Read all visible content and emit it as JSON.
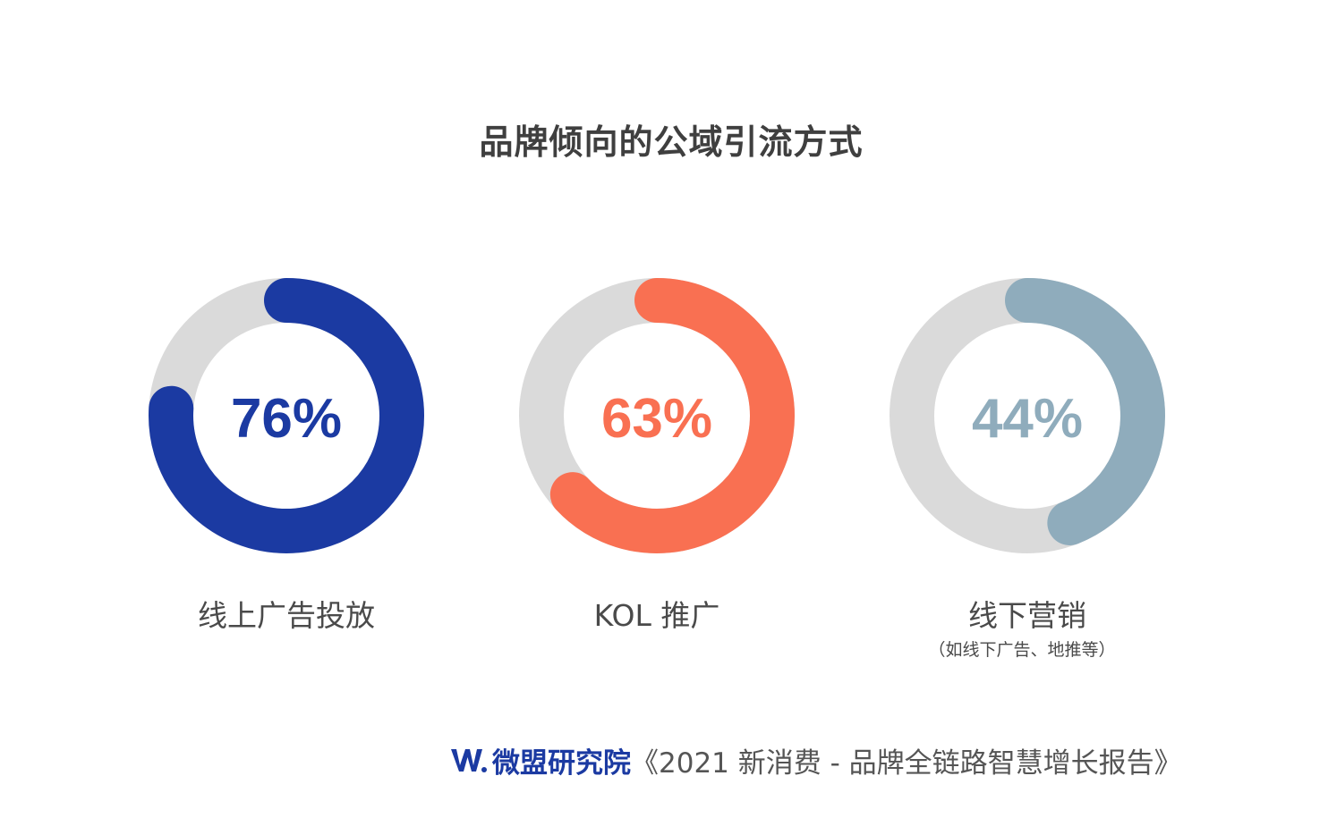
{
  "title": "品牌倾向的公域引流方式",
  "chart_data": {
    "type": "pie",
    "subtype": "donut",
    "series": [
      {
        "name": "线上广告投放",
        "note": "",
        "value": 76,
        "label": "76%",
        "color": "#1b3aa2"
      },
      {
        "name": "KOL 推广",
        "note": "",
        "value": 63,
        "label": "63%",
        "color": "#f97052"
      },
      {
        "name": "线下营销",
        "note": "（如线下广告、地推等）",
        "value": 44,
        "label": "44%",
        "color": "#8facbc"
      }
    ],
    "track_color": "#dadada"
  },
  "footer": {
    "brand": "微盟研究院",
    "report": "《2021 新消费 - 品牌全链路智慧增长报告》"
  },
  "colors": {
    "brand": "#1b3aa2",
    "title_text": "#3f3f3f",
    "label_text": "#4a4a4a",
    "note_text": "#4a4a4a"
  }
}
